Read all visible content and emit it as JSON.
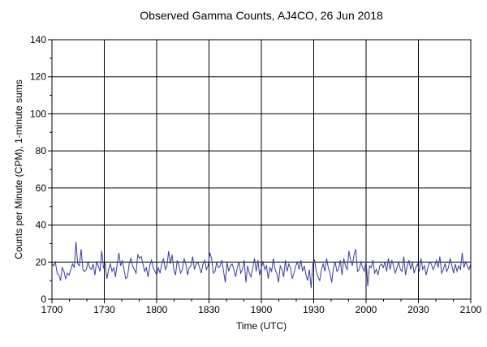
{
  "chart_data": {
    "type": "line",
    "title": "Observed Gamma Counts, AJ4CO, 26 Jun 2018",
    "xlabel": "Time (UTC)",
    "ylabel": "Counts per Minute (CPM), 1-minute sums",
    "xlim": [
      0,
      240
    ],
    "ylim": [
      0,
      140
    ],
    "x_ticks": [
      {
        "pos": 0,
        "label": "1700"
      },
      {
        "pos": 30,
        "label": "1730"
      },
      {
        "pos": 60,
        "label": "1800"
      },
      {
        "pos": 90,
        "label": "1830"
      },
      {
        "pos": 120,
        "label": "1900"
      },
      {
        "pos": 150,
        "label": "1930"
      },
      {
        "pos": 180,
        "label": "2000"
      },
      {
        "pos": 210,
        "label": "2030"
      },
      {
        "pos": 240,
        "label": "2100"
      }
    ],
    "y_ticks": [
      0,
      20,
      40,
      60,
      80,
      100,
      120,
      140
    ],
    "grid": true,
    "line_color": "#3a3aa0",
    "series": [
      {
        "name": "",
        "values": [
          19,
          18,
          20,
          14,
          13,
          10,
          17,
          15,
          11,
          14,
          13,
          16,
          19,
          17,
          31,
          19,
          18,
          27,
          16,
          15,
          16,
          20,
          17,
          16,
          19,
          13,
          20,
          18,
          15,
          26,
          17,
          19,
          11,
          16,
          19,
          15,
          17,
          12,
          19,
          25,
          18,
          21,
          16,
          11,
          12,
          19,
          22,
          18,
          16,
          14,
          24,
          22,
          23,
          19,
          15,
          17,
          12,
          18,
          21,
          17,
          15,
          13,
          17,
          14,
          19,
          22,
          16,
          18,
          26,
          19,
          24,
          16,
          13,
          21,
          18,
          14,
          16,
          22,
          19,
          13,
          17,
          18,
          23,
          16,
          19,
          20,
          17,
          14,
          19,
          21,
          16,
          18,
          25,
          22,
          14,
          15,
          20,
          17,
          18,
          21,
          15,
          9,
          20,
          15,
          18,
          19,
          16,
          12,
          17,
          20,
          14,
          16,
          21,
          9,
          18,
          14,
          12,
          17,
          22,
          15,
          21,
          13,
          17,
          20,
          16,
          18,
          11,
          17,
          15,
          22,
          16,
          14,
          9,
          18,
          16,
          12,
          21,
          15,
          19,
          17,
          11,
          14,
          18,
          20,
          16,
          21,
          15,
          18,
          13,
          10,
          16,
          6,
          19,
          21,
          15,
          12,
          10,
          16,
          19,
          15,
          22,
          17,
          14,
          9,
          17,
          20,
          15,
          16,
          21,
          13,
          22,
          18,
          16,
          26,
          21,
          18,
          24,
          27,
          15,
          16,
          20,
          17,
          15,
          21,
          7,
          18,
          17,
          21,
          14,
          16,
          13,
          18,
          19,
          17,
          20,
          15,
          22,
          16,
          21,
          18,
          14,
          17,
          20,
          16,
          15,
          23,
          13,
          18,
          21,
          16,
          20,
          14,
          17,
          19,
          15,
          22,
          16,
          18,
          13,
          17,
          20,
          19,
          16,
          18,
          21,
          17,
          23,
          14,
          16,
          19,
          15,
          17,
          22,
          18,
          14,
          19,
          15,
          18,
          16,
          25,
          17,
          20,
          18,
          16,
          19
        ]
      }
    ]
  }
}
